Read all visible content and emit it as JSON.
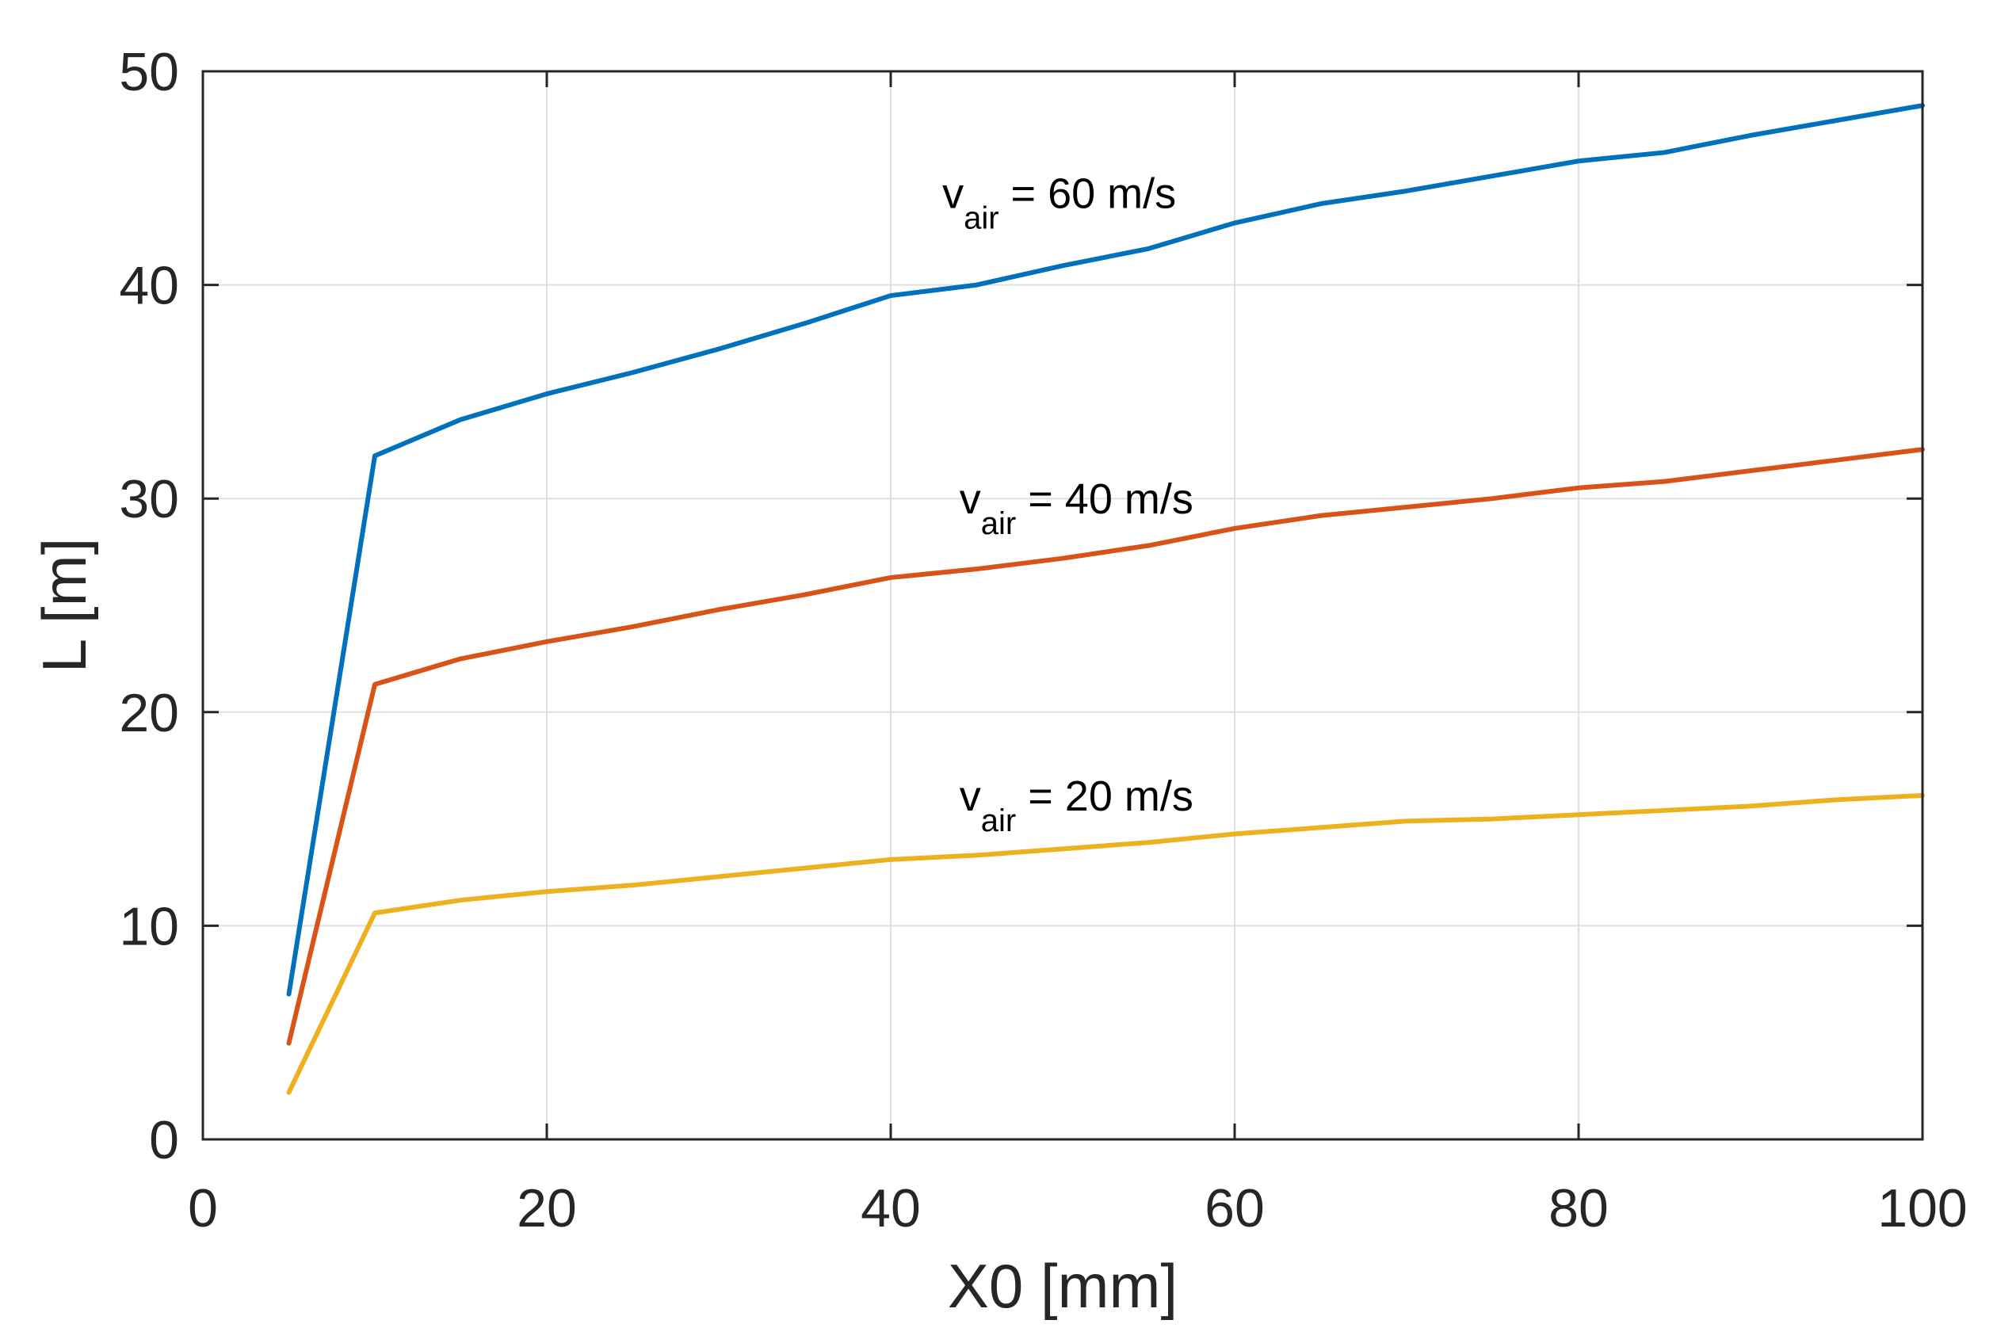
{
  "chart_data": {
    "type": "line",
    "title": "",
    "xlabel": "X0 [mm]",
    "ylabel": "L [m]",
    "xlim": [
      0,
      100
    ],
    "ylim": [
      0,
      50
    ],
    "xticks": [
      0,
      20,
      40,
      60,
      80,
      100
    ],
    "yticks": [
      0,
      10,
      20,
      30,
      40,
      50
    ],
    "grid": true,
    "x": [
      5,
      10,
      15,
      20,
      25,
      30,
      35,
      40,
      45,
      50,
      55,
      60,
      65,
      70,
      75,
      80,
      85,
      90,
      95,
      100
    ],
    "series": [
      {
        "name": "v_air = 60 m/s",
        "color": "#0072BD",
        "values": [
          6.8,
          32.0,
          33.7,
          34.9,
          35.9,
          37.0,
          38.2,
          39.5,
          40.0,
          40.9,
          41.7,
          42.9,
          43.8,
          44.4,
          45.1,
          45.8,
          46.2,
          47.0,
          47.7,
          48.4
        ]
      },
      {
        "name": "v_air = 40 m/s",
        "color": "#D95319",
        "values": [
          4.5,
          21.3,
          22.5,
          23.3,
          24.0,
          24.8,
          25.5,
          26.3,
          26.7,
          27.2,
          27.8,
          28.6,
          29.2,
          29.6,
          30.0,
          30.5,
          30.8,
          31.3,
          31.8,
          32.3
        ]
      },
      {
        "name": "v_air = 20 m/s",
        "color": "#EDB120",
        "values": [
          2.2,
          10.6,
          11.2,
          11.6,
          11.9,
          12.3,
          12.7,
          13.1,
          13.3,
          13.6,
          13.9,
          14.3,
          14.6,
          14.9,
          15.0,
          15.2,
          15.4,
          15.6,
          15.9,
          16.1
        ]
      }
    ],
    "annotations": [
      {
        "prefix": "v",
        "subscript": "air",
        "suffix": " = 60 m/s",
        "x": 43,
        "y": 43.6
      },
      {
        "prefix": "v",
        "subscript": "air",
        "suffix": " = 40 m/s",
        "x": 44,
        "y": 29.3
      },
      {
        "prefix": "v",
        "subscript": "air",
        "suffix": " = 20 m/s",
        "x": 44,
        "y": 15.4
      }
    ]
  }
}
